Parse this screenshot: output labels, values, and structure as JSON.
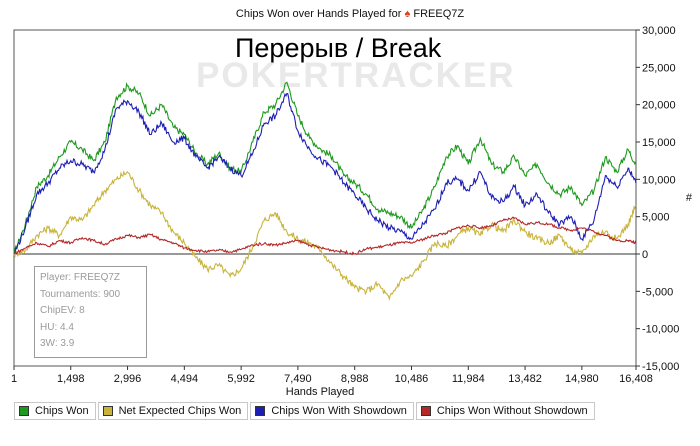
{
  "chart_data": {
    "type": "line",
    "title": "Chips Won over Hands Played for",
    "player_name": "FREEQ7Z",
    "xlabel": "Hands Played",
    "ylabel_mark": "#",
    "overlay_text": "Перерыв / Break",
    "watermark": "POKERTRACKER",
    "xlim": [
      1,
      16408
    ],
    "ylim": [
      -15000,
      30000
    ],
    "xticks": [
      1,
      1498,
      2996,
      4494,
      5992,
      7490,
      8988,
      10486,
      11984,
      13482,
      14980,
      16408
    ],
    "xtick_labels": [
      "1",
      "1,498",
      "2,996",
      "4,494",
      "5,992",
      "7,490",
      "8,988",
      "10,486",
      "11,984",
      "13,482",
      "14,980",
      "16,408"
    ],
    "yticks": [
      -15000,
      -10000,
      -5000,
      0,
      5000,
      10000,
      15000,
      20000,
      25000,
      30000
    ],
    "ytick_labels": [
      "-15,000",
      "-10,000",
      "-5,000",
      "0",
      "5,000",
      "10,000",
      "15,000",
      "20,000",
      "25,000",
      "30,000"
    ],
    "series": [
      {
        "name": "Chips Won",
        "color": "#1e9a1e",
        "x": [
          1,
          300,
          600,
          900,
          1200,
          1498,
          1800,
          2100,
          2400,
          2700,
          2996,
          3300,
          3600,
          3900,
          4200,
          4494,
          4800,
          5100,
          5400,
          5700,
          5992,
          6300,
          6600,
          6900,
          7200,
          7490,
          7800,
          8100,
          8400,
          8700,
          8988,
          9300,
          9600,
          9900,
          10200,
          10486,
          10800,
          11100,
          11400,
          11700,
          11984,
          12300,
          12600,
          12900,
          13200,
          13482,
          13800,
          14100,
          14400,
          14700,
          14980,
          15300,
          15600,
          15900,
          16200,
          16408
        ],
        "values": [
          0,
          4000,
          9000,
          10500,
          13000,
          15000,
          14000,
          12500,
          15000,
          21000,
          22500,
          21500,
          18500,
          20000,
          17000,
          16000,
          13500,
          12000,
          13500,
          11500,
          11000,
          15000,
          19000,
          20000,
          23000,
          18500,
          15500,
          14000,
          13000,
          10500,
          9500,
          8000,
          6000,
          5500,
          5000,
          3500,
          6000,
          9000,
          13000,
          14500,
          12000,
          15500,
          12000,
          11000,
          13000,
          10500,
          12000,
          9500,
          8000,
          9000,
          6500,
          8500,
          13000,
          11000,
          14000,
          12000
        ]
      },
      {
        "name": "Net Expected Chips Won",
        "color": "#c8b43c",
        "x": [
          1,
          300,
          600,
          900,
          1200,
          1498,
          1800,
          2100,
          2400,
          2700,
          2996,
          3300,
          3600,
          3900,
          4200,
          4494,
          4800,
          5100,
          5400,
          5700,
          5992,
          6300,
          6600,
          6900,
          7200,
          7490,
          7800,
          8100,
          8400,
          8700,
          8988,
          9300,
          9600,
          9900,
          10200,
          10486,
          10800,
          11100,
          11400,
          11700,
          11984,
          12300,
          12600,
          12900,
          13200,
          13482,
          13800,
          14100,
          14400,
          14700,
          14980,
          15300,
          15600,
          15900,
          16200,
          16408
        ],
        "values": [
          0,
          500,
          2500,
          3500,
          2500,
          5000,
          4500,
          6500,
          8500,
          10000,
          11000,
          8500,
          6500,
          5500,
          3000,
          1500,
          -500,
          -2000,
          -1500,
          -3000,
          -2000,
          1000,
          4500,
          5500,
          3000,
          2000,
          1500,
          500,
          -1500,
          -3000,
          -4500,
          -5000,
          -4000,
          -6000,
          -3500,
          -3000,
          -1000,
          1500,
          1000,
          2500,
          3500,
          2500,
          4000,
          3000,
          4500,
          3000,
          2000,
          1500,
          2500,
          500,
          0,
          2500,
          3000,
          2000,
          4000,
          6500
        ]
      },
      {
        "name": "Chips Won With Showdown",
        "color": "#1e1eb4",
        "x": [
          1,
          300,
          600,
          900,
          1200,
          1498,
          1800,
          2100,
          2400,
          2700,
          2996,
          3300,
          3600,
          3900,
          4200,
          4494,
          4800,
          5100,
          5400,
          5700,
          5992,
          6300,
          6600,
          6900,
          7200,
          7490,
          7800,
          8100,
          8400,
          8700,
          8988,
          9300,
          9600,
          9900,
          10200,
          10486,
          10800,
          11100,
          11400,
          11700,
          11984,
          12300,
          12600,
          12900,
          13200,
          13482,
          13800,
          14100,
          14400,
          14700,
          14980,
          15300,
          15600,
          15900,
          16200,
          16408
        ],
        "values": [
          0,
          3500,
          8000,
          9500,
          11500,
          12500,
          12000,
          11000,
          14000,
          19500,
          20500,
          19000,
          16000,
          17500,
          15000,
          15500,
          13000,
          11500,
          13000,
          11500,
          10500,
          13500,
          17500,
          18500,
          21500,
          16500,
          14000,
          12500,
          11500,
          9500,
          8000,
          6000,
          4500,
          3500,
          3000,
          2000,
          4000,
          6000,
          9500,
          10000,
          8500,
          11000,
          7500,
          7000,
          9000,
          6500,
          8000,
          5500,
          4000,
          5000,
          2000,
          4500,
          10500,
          9000,
          11500,
          9500
        ]
      },
      {
        "name": "Chips Won Without Showdown",
        "color": "#b42828",
        "x": [
          1,
          300,
          600,
          900,
          1200,
          1498,
          1800,
          2100,
          2400,
          2700,
          2996,
          3300,
          3600,
          3900,
          4200,
          4494,
          4800,
          5100,
          5400,
          5700,
          5992,
          6300,
          6600,
          6900,
          7200,
          7490,
          7800,
          8100,
          8400,
          8700,
          8988,
          9300,
          9600,
          9900,
          10200,
          10486,
          10800,
          11100,
          11400,
          11700,
          11984,
          12300,
          12600,
          12900,
          13200,
          13482,
          13800,
          14100,
          14400,
          14700,
          14980,
          15300,
          15600,
          15900,
          16200,
          16408
        ],
        "values": [
          0,
          800,
          1500,
          1000,
          1800,
          1500,
          2200,
          1800,
          1300,
          2000,
          2500,
          2200,
          2600,
          1900,
          1500,
          800,
          500,
          300,
          500,
          300,
          600,
          1200,
          1400,
          1200,
          1500,
          1800,
          1200,
          800,
          500,
          300,
          0,
          700,
          900,
          1200,
          1500,
          1500,
          2000,
          2500,
          2800,
          3500,
          3800,
          3500,
          3800,
          4500,
          4800,
          4000,
          4200,
          4000,
          3500,
          3200,
          3500,
          3000,
          2500,
          1800,
          1800,
          1500
        ]
      }
    ],
    "legend": [
      {
        "label": "Chips Won",
        "color": "#1e9a1e"
      },
      {
        "label": "Net Expected Chips Won",
        "color": "#c8b43c"
      },
      {
        "label": "Chips Won With Showdown",
        "color": "#1e1eb4"
      },
      {
        "label": "Chips Won Without Showdown",
        "color": "#b42828"
      }
    ],
    "info_box": [
      "Player: FREEQ7Z",
      "Tournaments: 900",
      "ChipEV: 8",
      "HU: 4.4",
      "3W: 3.9"
    ]
  }
}
